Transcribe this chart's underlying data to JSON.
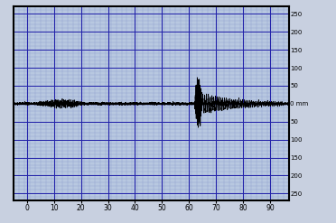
{
  "bg_color": "#c8d0e0",
  "plot_bg_color": "#b8c8e0",
  "border_color": "#000000",
  "grid_major_color": "#2222aa",
  "grid_minor_color": "#8899cc",
  "line_color": "#000000",
  "dashed_line_color": "#000000",
  "xlim": [
    -5,
    97
  ],
  "ylim": [
    -270,
    270
  ],
  "xticks": [
    0,
    10,
    20,
    30,
    40,
    50,
    60,
    70,
    80,
    90
  ],
  "major_grid_y": [
    250,
    200,
    150,
    100,
    50,
    0,
    -50,
    -100,
    -150,
    -200,
    -250
  ],
  "major_grid_x": [
    0,
    10,
    20,
    30,
    40,
    50,
    60,
    70,
    80,
    90
  ],
  "minor_y_step": 10,
  "minor_x_step": 2,
  "seed": 42,
  "noise_amp": 1.5,
  "seismic1_start": 3,
  "seismic1_end": 22,
  "seismic1_amp": 15,
  "seismic2_start": 62,
  "seismic2_end": 65,
  "seismic2_amp": 55,
  "seismic3_start": 65,
  "seismic3_end": 95,
  "seismic3_amp": 20,
  "right_tick_vals": [
    250,
    200,
    150,
    100,
    50,
    0,
    -50,
    -100,
    -150,
    -200,
    -250
  ],
  "right_tick_labels": [
    "250",
    "200",
    "150",
    "100",
    "50",
    "0 mm",
    "50",
    "100",
    "150",
    "200",
    "250"
  ]
}
